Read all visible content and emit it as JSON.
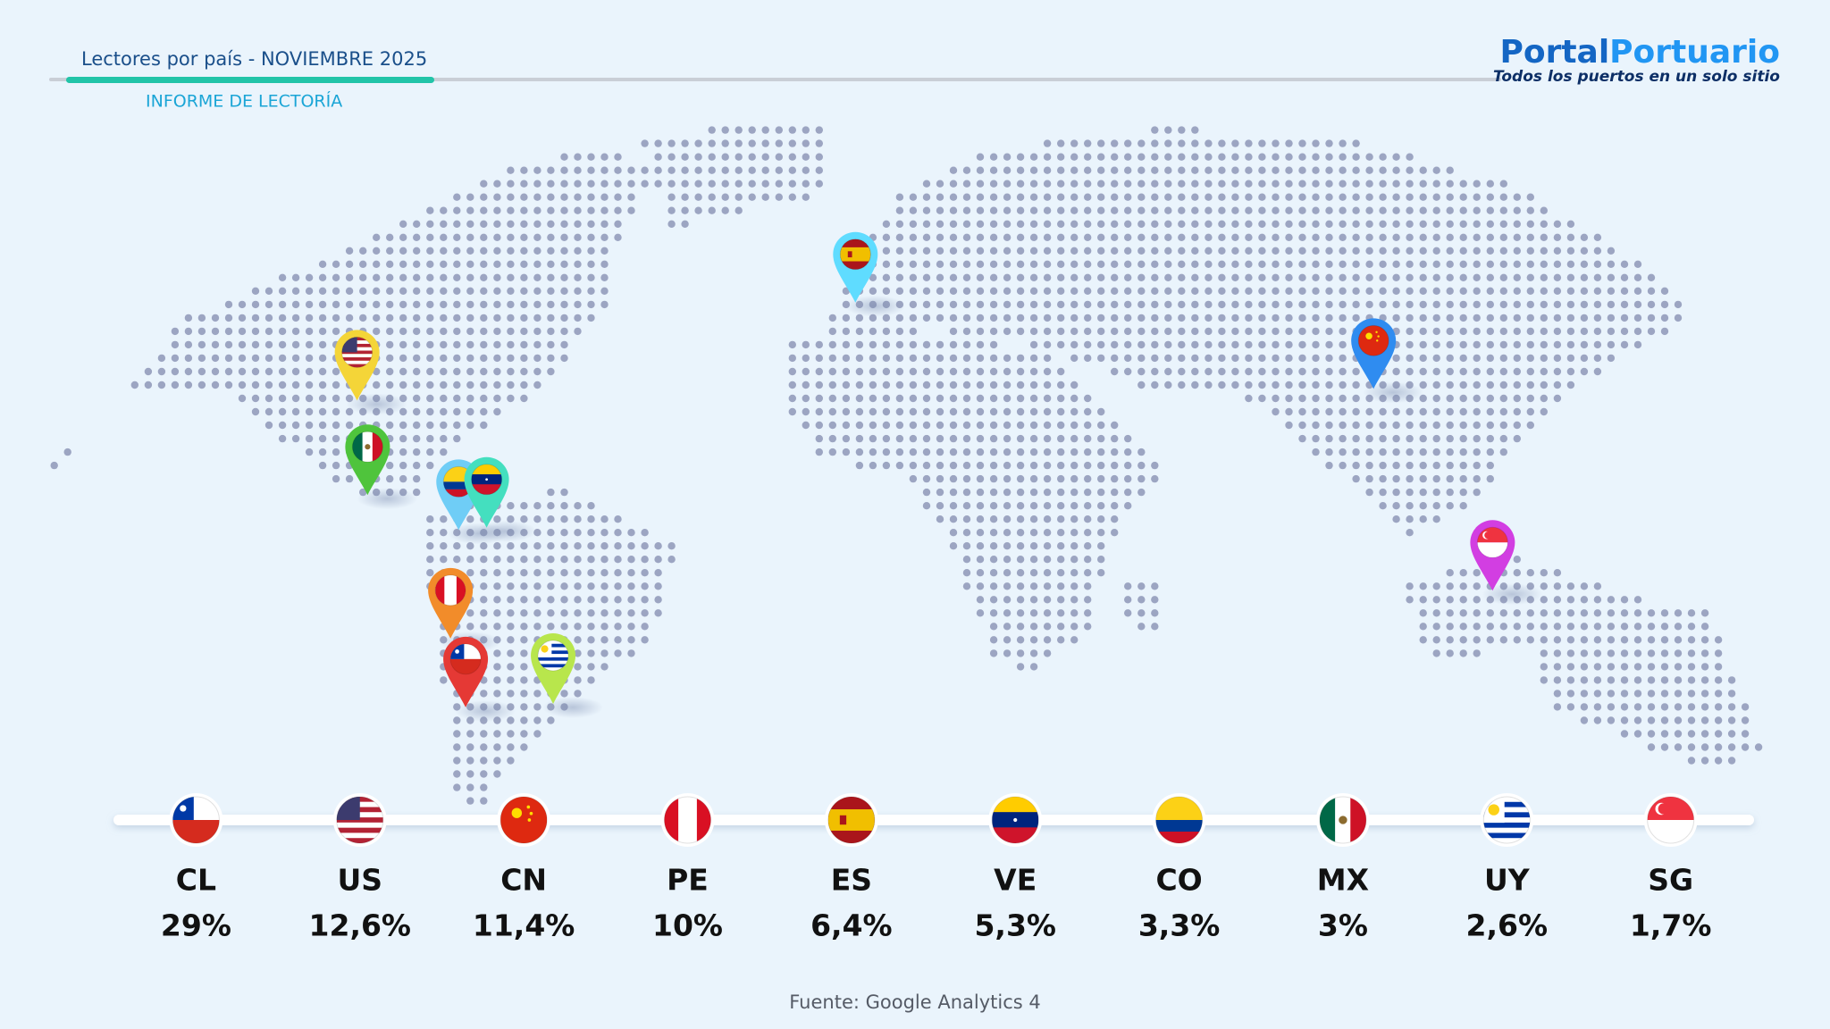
{
  "header": {
    "title": "Lectores por país - NOVIEMBRE 2025",
    "subtitle": "INFORME DE LECTORÍA"
  },
  "brand": {
    "name_part1": "Portal",
    "name_part2": "Portuario",
    "tagline": "Todos los puertos en un solo sitio"
  },
  "countries": [
    {
      "code": "CL",
      "share": "29%"
    },
    {
      "code": "US",
      "share": "12,6%"
    },
    {
      "code": "CN",
      "share": "11,4%"
    },
    {
      "code": "PE",
      "share": "10%"
    },
    {
      "code": "ES",
      "share": "6,4%"
    },
    {
      "code": "VE",
      "share": "5,3%"
    },
    {
      "code": "CO",
      "share": "3,3%"
    },
    {
      "code": "MX",
      "share": "3%"
    },
    {
      "code": "UY",
      "share": "2,6%"
    },
    {
      "code": "SG",
      "share": "1,7%"
    }
  ],
  "source": "Fuente: Google Analytics 4"
}
